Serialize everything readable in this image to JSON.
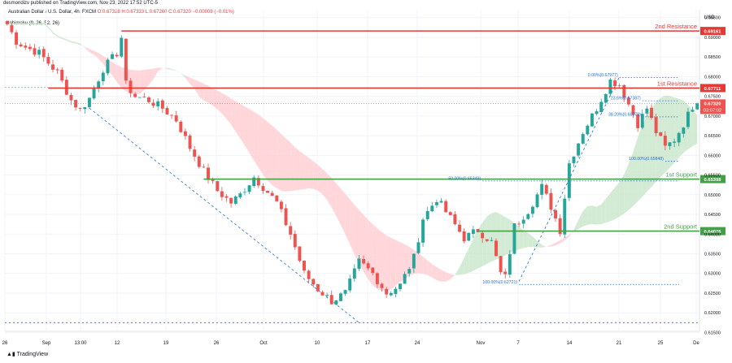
{
  "header": {
    "publisher_line": "desmondizv published on TradingView.com, Nov 23, 2022 17:52 UTC-5",
    "symbol_line": "Australian Dollar / U.S. Dollar, 4h, FXCM",
    "ohlc": "O:0.67328 H:0.67333 L:0.67260 C:0.67320 −0.00008 (−0.01%)",
    "indicator": "Ichimoku (9, 26, 52, 26)",
    "currency": "USD"
  },
  "footer": {
    "logo_text": "TradingView"
  },
  "colors": {
    "up": "#26a69a",
    "down": "#ef5350",
    "resistance": "#e53935",
    "support": "#43a047",
    "fib": "#1e6fd9",
    "cloud_bull": "#c8e6c9",
    "cloud_bear": "#ffcdd2"
  },
  "chart_data": {
    "type": "candlestick",
    "x_ticks": [
      "26",
      "Sep",
      "13:00",
      "12",
      "19",
      "26",
      "Oct",
      "10",
      "17",
      "24",
      "Nov",
      "7",
      "14",
      "21",
      "25",
      "De"
    ],
    "y_ticks": [
      "0.69500",
      "0.69000",
      "0.68500",
      "0.68000",
      "0.67500",
      "0.67000",
      "0.66500",
      "0.66000",
      "0.65500",
      "0.65000",
      "0.64500",
      "0.64000",
      "0.63500",
      "0.63000",
      "0.62500",
      "0.62000",
      "0.61500"
    ],
    "ylim": [
      0.6153,
      0.697
    ],
    "price_path": [
      [
        0,
        0.6955
      ],
      [
        3,
        0.689
      ],
      [
        5,
        0.6875
      ],
      [
        8,
        0.686
      ],
      [
        12,
        0.681
      ],
      [
        15,
        0.674
      ],
      [
        17,
        0.6715
      ],
      [
        19,
        0.6745
      ],
      [
        22,
        0.682
      ],
      [
        25,
        0.686
      ],
      [
        26,
        0.69
      ],
      [
        27,
        0.678
      ],
      [
        29,
        0.675
      ],
      [
        32,
        0.674
      ],
      [
        35,
        0.672
      ],
      [
        38,
        0.669
      ],
      [
        41,
        0.662
      ],
      [
        44,
        0.656
      ],
      [
        47,
        0.651
      ],
      [
        50,
        0.648
      ],
      [
        52,
        0.65
      ],
      [
        55,
        0.6545
      ],
      [
        57,
        0.652
      ],
      [
        60,
        0.648
      ],
      [
        63,
        0.64
      ],
      [
        66,
        0.63
      ],
      [
        69,
        0.626
      ],
      [
        72,
        0.623
      ],
      [
        75,
        0.625
      ],
      [
        78,
        0.633
      ],
      [
        81,
        0.63
      ],
      [
        84,
        0.625
      ],
      [
        87,
        0.627
      ],
      [
        90,
        0.634
      ],
      [
        92,
        0.644
      ],
      [
        95,
        0.649
      ],
      [
        98,
        0.644
      ],
      [
        101,
        0.639
      ],
      [
        104,
        0.641
      ],
      [
        107,
        0.638
      ],
      [
        109,
        0.63
      ],
      [
        110,
        0.629
      ],
      [
        112,
        0.642
      ],
      [
        115,
        0.646
      ],
      [
        118,
        0.652
      ],
      [
        120,
        0.647
      ],
      [
        122,
        0.641
      ],
      [
        124,
        0.658
      ],
      [
        127,
        0.666
      ],
      [
        130,
        0.672
      ],
      [
        133,
        0.679
      ],
      [
        135,
        0.678
      ],
      [
        137,
        0.673
      ],
      [
        139,
        0.668
      ],
      [
        141,
        0.672
      ],
      [
        143,
        0.666
      ],
      [
        145,
        0.662
      ],
      [
        147,
        0.664
      ],
      [
        149,
        0.668
      ],
      [
        151,
        0.6725
      ],
      [
        152,
        0.6732
      ]
    ],
    "candle_count": 152,
    "last_price": 0.6732,
    "last_price_label": "0.67320",
    "countdown_label": "03:07:02",
    "levels": [
      {
        "name": "2nd Resistance",
        "label": "2nd Resistance",
        "price": 0.69161,
        "price_label": "0.69161",
        "kind": "resistance"
      },
      {
        "name": "1st Resistance",
        "label": "1st Resistance",
        "price": 0.67711,
        "price_label": "0.67711",
        "kind": "resistance"
      },
      {
        "name": "1st Support",
        "label": "1st Support",
        "price": 0.65398,
        "price_label": "0.65398",
        "kind": "support"
      },
      {
        "name": "2nd Support",
        "label": "2nd Support",
        "price": 0.64076,
        "price_label": "0.64076",
        "kind": "support"
      }
    ],
    "fib_levels": [
      {
        "label": "0.00%(0.67977)",
        "price": 0.67977
      },
      {
        "label": "23.6%(0.67387)",
        "price": 0.67387
      },
      {
        "label": "38.20%(0.66979)",
        "price": 0.66979
      },
      {
        "label": "100.00%(0.65848)",
        "price": 0.65848
      },
      {
        "label": "50.00%(0.65349)",
        "price": 0.65349
      },
      {
        "label": "100.00%(0.62721)",
        "price": 0.62721
      }
    ],
    "trendlines": [
      {
        "from": [
          18,
          0.672
        ],
        "to": [
          77,
          0.6175
        ],
        "style": "dashed"
      },
      {
        "from": [
          112,
          0.628
        ],
        "to": [
          134,
          0.68
        ],
        "style": "dashed"
      }
    ],
    "bottom_line": 0.6175
  }
}
